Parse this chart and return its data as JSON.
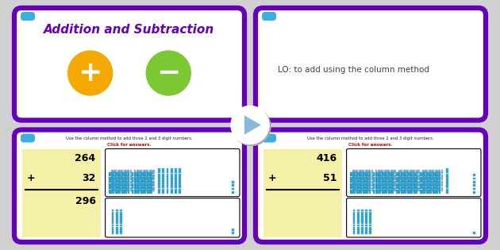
{
  "bg_color": "#d0d0d0",
  "card_border_color": "#6600bb",
  "card_bg": "#ffffff",
  "title_text": "Addition and Subtraction",
  "title_color": "#6600bb",
  "lo_text": "LO: to add using the column method",
  "lo_color": "#444444",
  "orange_circle_color": "#f5a800",
  "green_circle_color": "#7cc832",
  "slide_header_color": "#3ab0e0",
  "slide_header2": "Use the column method to add three 2 and 3 digit numbers.",
  "click_text": "Click for answers.",
  "click_color": "#cc0000",
  "math_bg": "#f5f0a8",
  "bar_color": "#3ab0d8",
  "bar_dark": "#1177aa",
  "play_arrow_color": "#8ab8d8",
  "hundred_cols": 10,
  "hundred_rows": 10
}
